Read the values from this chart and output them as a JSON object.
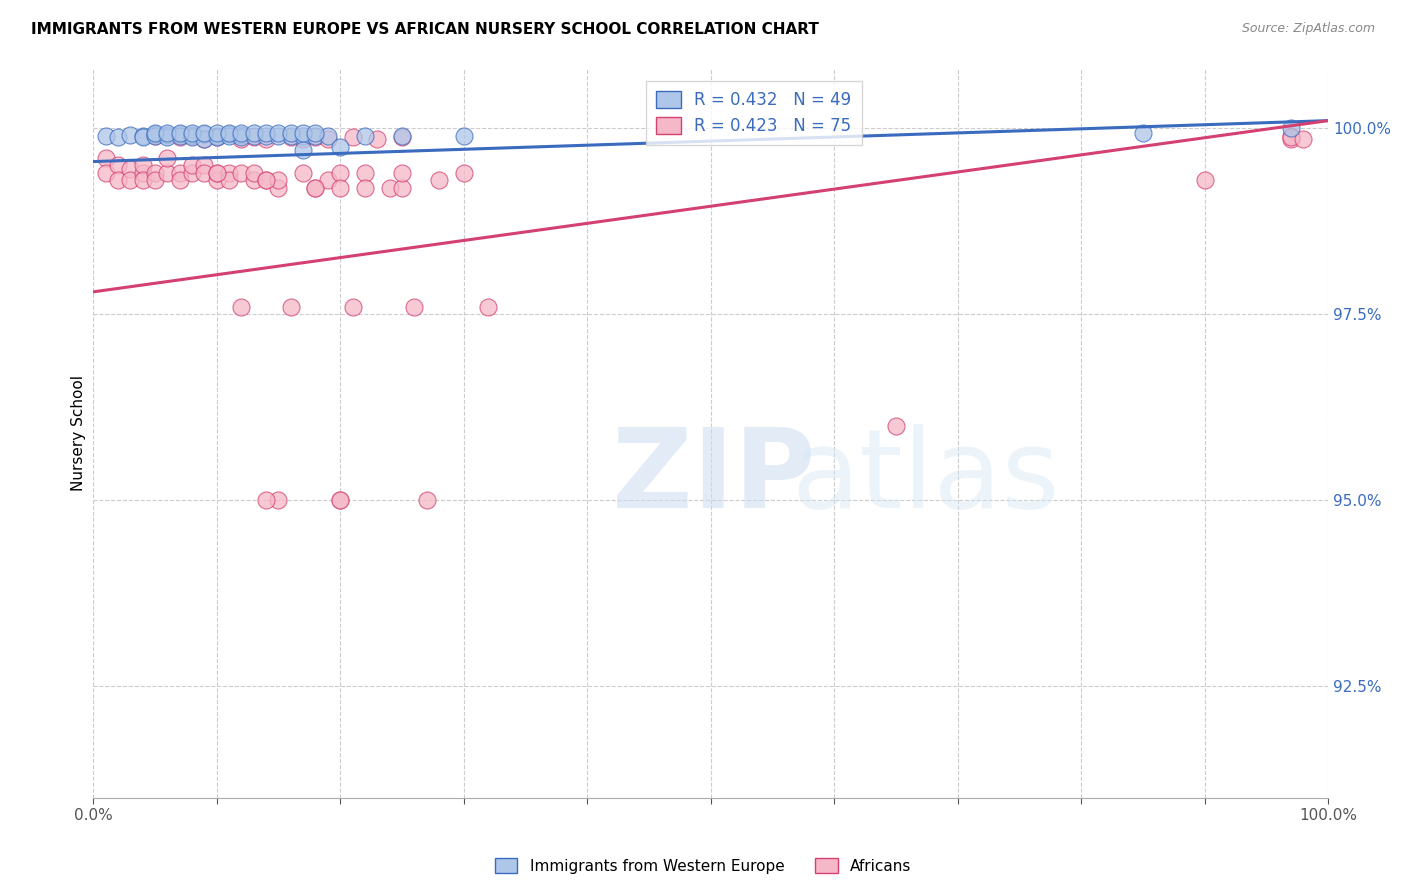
{
  "title": "IMMIGRANTS FROM WESTERN EUROPE VS AFRICAN NURSERY SCHOOL CORRELATION CHART",
  "source": "Source: ZipAtlas.com",
  "ylabel": "Nursery School",
  "ytick_labels": [
    "100.0%",
    "97.5%",
    "95.0%",
    "92.5%"
  ],
  "ytick_values": [
    1.0,
    0.975,
    0.95,
    0.925
  ],
  "xlim": [
    0.0,
    1.0
  ],
  "ylim": [
    0.91,
    1.008
  ],
  "blue_R": 0.432,
  "blue_N": 49,
  "pink_R": 0.423,
  "pink_N": 75,
  "blue_color": "#aec6e8",
  "pink_color": "#f5b8c8",
  "blue_line_color": "#3a6bbf",
  "pink_line_color": "#d44070",
  "legend_label_blue": "Immigrants from Western Europe",
  "legend_label_pink": "Africans",
  "blue_line_x": [
    0.0,
    1.0
  ],
  "blue_line_y": [
    0.9955,
    1.001
  ],
  "pink_line_x": [
    0.0,
    1.0
  ],
  "pink_line_y": [
    0.978,
    1.001
  ],
  "blue_scatter_x": [
    0.01,
    0.02,
    0.03,
    0.04,
    0.04,
    0.05,
    0.05,
    0.06,
    0.06,
    0.07,
    0.07,
    0.08,
    0.08,
    0.09,
    0.09,
    0.1,
    0.1,
    0.11,
    0.11,
    0.12,
    0.12,
    0.13,
    0.14,
    0.15,
    0.16,
    0.17,
    0.18,
    0.19,
    0.2,
    0.22,
    0.17,
    0.25,
    0.3,
    0.97,
    0.05,
    0.06,
    0.07,
    0.08,
    0.09,
    0.1,
    0.11,
    0.12,
    0.13,
    0.14,
    0.15,
    0.16,
    0.17,
    0.18,
    0.85
  ],
  "blue_scatter_y": [
    0.999,
    0.9988,
    0.9991,
    0.999,
    0.9988,
    0.9992,
    0.999,
    0.9991,
    0.9988,
    0.9992,
    0.999,
    0.9991,
    0.9988,
    0.9992,
    0.9985,
    0.999,
    0.9988,
    0.9992,
    0.999,
    0.9991,
    0.9988,
    0.999,
    0.999,
    0.999,
    0.999,
    0.999,
    0.999,
    0.999,
    0.9975,
    0.999,
    0.997,
    0.999,
    0.999,
    1.0,
    0.9993,
    0.9993,
    0.9993,
    0.9993,
    0.9993,
    0.9993,
    0.9993,
    0.9993,
    0.9993,
    0.9993,
    0.9993,
    0.9993,
    0.9993,
    0.9993,
    0.9993
  ],
  "pink_scatter_x": [
    0.01,
    0.01,
    0.02,
    0.02,
    0.03,
    0.03,
    0.04,
    0.04,
    0.04,
    0.05,
    0.05,
    0.06,
    0.06,
    0.07,
    0.07,
    0.08,
    0.08,
    0.09,
    0.09,
    0.1,
    0.1,
    0.11,
    0.11,
    0.12,
    0.12,
    0.13,
    0.13,
    0.14,
    0.15,
    0.15,
    0.16,
    0.17,
    0.18,
    0.19,
    0.2,
    0.21,
    0.22,
    0.24,
    0.26,
    0.28,
    0.3,
    0.32,
    0.1,
    0.15,
    0.2,
    0.14,
    0.2,
    0.25,
    0.25,
    0.27,
    0.14,
    0.18,
    0.2,
    0.22,
    0.65,
    0.05,
    0.07,
    0.08,
    0.09,
    0.1,
    0.12,
    0.13,
    0.14,
    0.16,
    0.17,
    0.18,
    0.19,
    0.21,
    0.23,
    0.25,
    0.9,
    0.97,
    0.97,
    0.97,
    0.98
  ],
  "pink_scatter_y": [
    0.996,
    0.994,
    0.995,
    0.993,
    0.9945,
    0.993,
    0.994,
    0.995,
    0.993,
    0.994,
    0.993,
    0.994,
    0.996,
    0.994,
    0.993,
    0.994,
    0.995,
    0.995,
    0.994,
    0.993,
    0.994,
    0.994,
    0.993,
    0.994,
    0.976,
    0.993,
    0.994,
    0.993,
    0.992,
    0.993,
    0.976,
    0.994,
    0.992,
    0.993,
    0.994,
    0.976,
    0.994,
    0.992,
    0.976,
    0.993,
    0.994,
    0.976,
    0.994,
    0.95,
    0.992,
    0.993,
    0.95,
    0.992,
    0.994,
    0.95,
    0.95,
    0.992,
    0.95,
    0.992,
    0.96,
    0.999,
    0.9988,
    0.999,
    0.9985,
    0.9988,
    0.9985,
    0.9988,
    0.9985,
    0.9988,
    0.9985,
    0.9988,
    0.9985,
    0.9988,
    0.9985,
    0.9988,
    0.993,
    0.999,
    0.9985,
    0.9988,
    0.9985
  ]
}
